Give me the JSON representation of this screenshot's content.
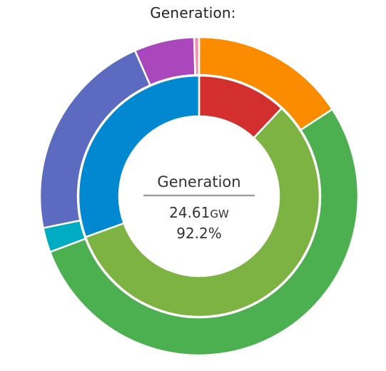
{
  "title": "Generation:",
  "colors": {
    "divider": "#9e9e9e",
    "text": "#333333"
  },
  "center": {
    "label": "Generation",
    "value": "24.61",
    "unit": "GW",
    "percent": "92.2%"
  },
  "chart_data": {
    "type": "pie",
    "subtype": "nested-donut",
    "title": "Generation:",
    "rings": [
      {
        "ring": "inner",
        "slices": [
          {
            "value": 12.0,
            "color": "#d32f2f",
            "icon": "red-segment"
          },
          {
            "value": 57.5,
            "color": "#7cb342",
            "icon": "light-green-segment"
          },
          {
            "value": 30.5,
            "color": "#0288d1",
            "icon": "blue-segment"
          }
        ]
      },
      {
        "ring": "outer",
        "slices": [
          {
            "value": 15.8,
            "color": "#fb8c00"
          },
          {
            "value": 53.5,
            "color": "#4caf50"
          },
          {
            "value": 2.5,
            "color": "#00acc1"
          },
          {
            "value": 21.6,
            "color": "#5c6bc0"
          },
          {
            "value": 6.1,
            "color": "#ab47bc"
          },
          {
            "value": 0.5,
            "color": "#f48fb1"
          }
        ]
      }
    ]
  }
}
